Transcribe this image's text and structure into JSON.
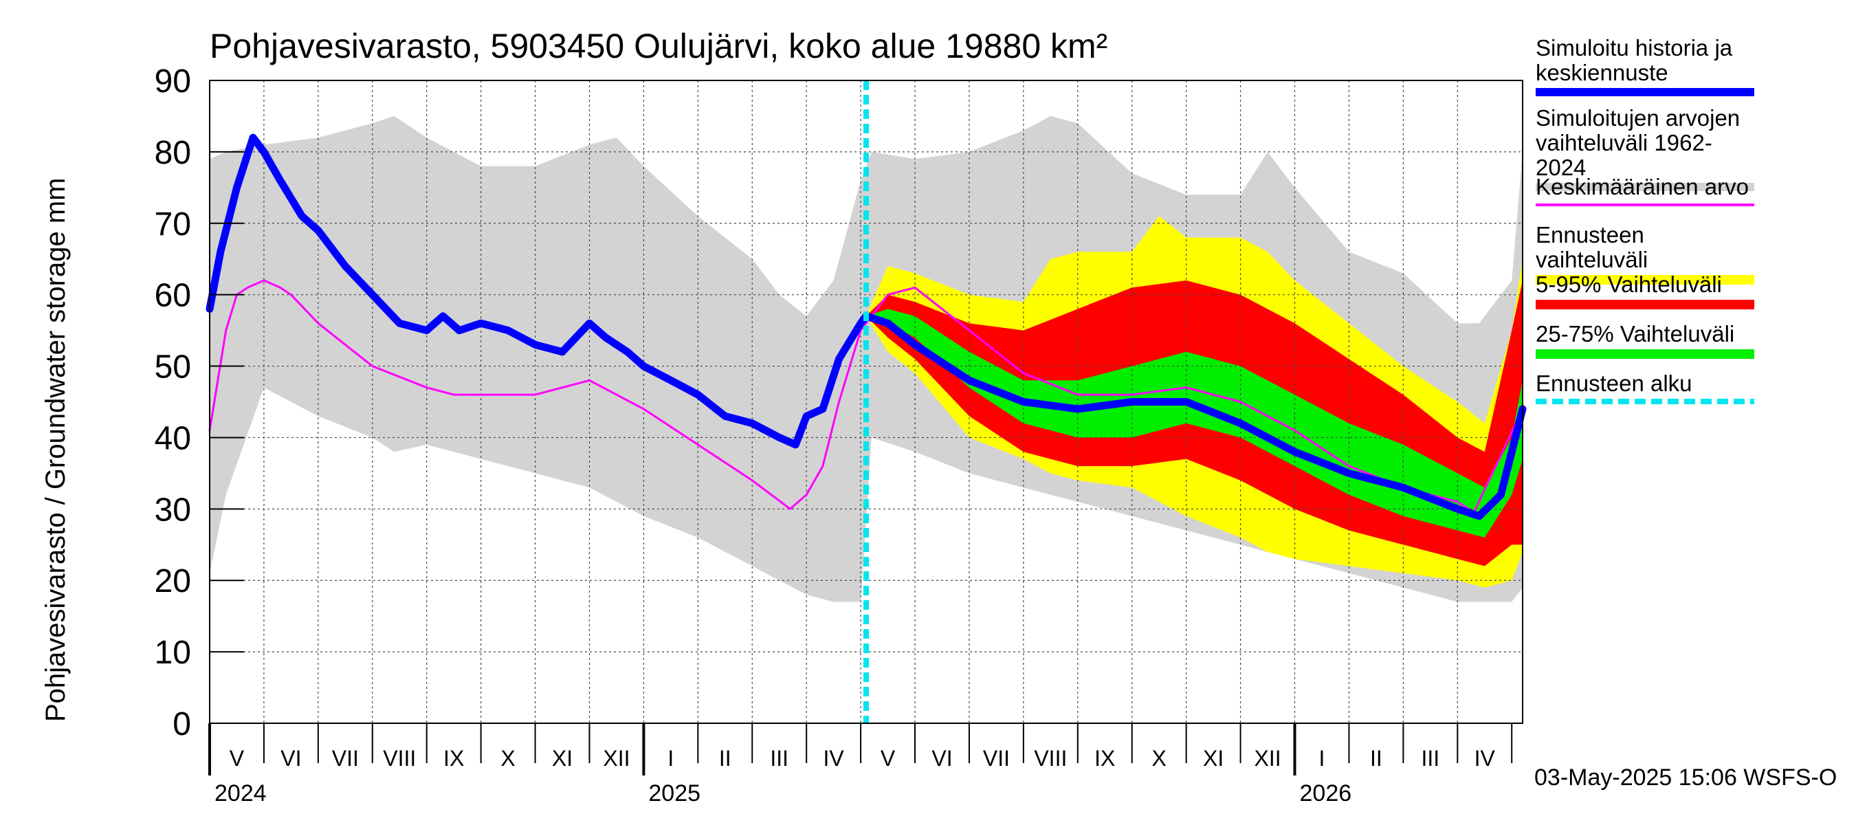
{
  "chart_data": {
    "type": "area",
    "title": "Pohjavesivarasto, 5903450 Oulujärvi, koko alue 19880 km²",
    "ylabel": "Pohjavesivarasto / Groundwater storage   mm",
    "ylim": [
      0,
      90
    ],
    "yticks": [
      0,
      10,
      20,
      30,
      40,
      50,
      60,
      70,
      80,
      90
    ],
    "xlim_months": [
      0,
      24.2
    ],
    "month_labels": [
      "V",
      "VI",
      "VII",
      "VIII",
      "IX",
      "X",
      "XI",
      "XII",
      "I",
      "II",
      "III",
      "IV",
      "V",
      "VI",
      "VII",
      "VIII",
      "IX",
      "X",
      "XI",
      "XII",
      "I",
      "II",
      "III",
      "IV"
    ],
    "year_labels": [
      {
        "label": "2024",
        "month": 0
      },
      {
        "label": "2025",
        "month": 8
      },
      {
        "label": "2026",
        "month": 20
      }
    ],
    "forecast_start_month": 12.1,
    "grid": true,
    "legend_position": "right",
    "series": [
      {
        "name": "Simuloitujen arvojen\nvaihteluväli 1962-2024",
        "kind": "band",
        "color": "#d3d3d3",
        "x": [
          0,
          0.3,
          1,
          2,
          3,
          3.4,
          4,
          5,
          6,
          7,
          7.5,
          8,
          9,
          10,
          10.5,
          11,
          11.5,
          12,
          12.2,
          13,
          14,
          15,
          15.5,
          16,
          17,
          18,
          19,
          19.5,
          20,
          21,
          22,
          23,
          23.4,
          24,
          24.2
        ],
        "upper": [
          79,
          80,
          81,
          82,
          84,
          85,
          82,
          78,
          78,
          81,
          82,
          78,
          71,
          65,
          60,
          57,
          62,
          76,
          80,
          79,
          80,
          83,
          85,
          84,
          77,
          74,
          74,
          80,
          75,
          66,
          63,
          56,
          56,
          62,
          80
        ],
        "lower": [
          21,
          32,
          47,
          43,
          40,
          38,
          39,
          37,
          35,
          33,
          31,
          29,
          26,
          22,
          20,
          18,
          17,
          17,
          40,
          38,
          35,
          33,
          32,
          31,
          29,
          27,
          25,
          24,
          23,
          21,
          19,
          17,
          17,
          17,
          19
        ]
      },
      {
        "name": "Ennusteen vaihteluväli",
        "kind": "band",
        "color": "#ffff00",
        "x": [
          12.1,
          12.5,
          13,
          14,
          15,
          15.5,
          16,
          17,
          17.5,
          18,
          19,
          19.5,
          20,
          21,
          22,
          23,
          23.5,
          24,
          24.2
        ],
        "upper": [
          57,
          64,
          63,
          60,
          59,
          65,
          66,
          66,
          71,
          68,
          68,
          66,
          62,
          56,
          50,
          45,
          42,
          55,
          65
        ],
        "lower": [
          57,
          52,
          49,
          40,
          37,
          35,
          34,
          33,
          31,
          29,
          26,
          24,
          23,
          22,
          21,
          20,
          19,
          20,
          24
        ]
      },
      {
        "name": "5-95% Vaihteluväli",
        "kind": "band",
        "color": "#ff0000",
        "x": [
          12.1,
          12.5,
          13,
          14,
          15,
          16,
          17,
          18,
          19,
          20,
          21,
          22,
          23,
          23.5,
          24,
          24.2
        ],
        "upper": [
          57,
          60,
          59,
          56,
          55,
          58,
          61,
          62,
          60,
          56,
          51,
          46,
          40,
          38,
          55,
          62
        ],
        "lower": [
          57,
          54,
          51,
          43,
          38,
          36,
          36,
          37,
          34,
          30,
          27,
          25,
          23,
          22,
          25,
          25
        ]
      },
      {
        "name": "25-75% Vaihteluväli",
        "kind": "band",
        "color": "#00ee00",
        "x": [
          12.1,
          12.5,
          13,
          14,
          15,
          16,
          17,
          18,
          19,
          20,
          21,
          22,
          23,
          23.5,
          24,
          24.2
        ],
        "upper": [
          57,
          58,
          57,
          52,
          48,
          48,
          50,
          52,
          50,
          46,
          42,
          39,
          35,
          33,
          40,
          48
        ],
        "lower": [
          57,
          56,
          54,
          47,
          42,
          40,
          40,
          42,
          40,
          36,
          32,
          29,
          27,
          26,
          32,
          37
        ]
      },
      {
        "name": "Keskimääräinen arvo",
        "kind": "line",
        "color": "#ff00ff",
        "width": 3,
        "x": [
          0,
          0.3,
          0.5,
          0.7,
          1,
          1.3,
          1.5,
          2,
          2.5,
          3,
          4,
          4.5,
          5,
          6,
          6.5,
          7,
          7.5,
          8,
          9,
          10,
          10.7,
          11,
          11.3,
          11.6,
          12,
          12.5,
          13,
          14,
          15,
          16,
          17,
          18,
          19,
          20,
          21,
          22,
          23,
          23.3,
          24.2
        ],
        "y": [
          41,
          55,
          60,
          61,
          62,
          61,
          60,
          56,
          53,
          50,
          47,
          46,
          46,
          46,
          47,
          48,
          46,
          44,
          39,
          34,
          30,
          32,
          36,
          45,
          55,
          60,
          61,
          55,
          49,
          46,
          46,
          47,
          45,
          41,
          36,
          33,
          31,
          29.5,
          44
        ]
      },
      {
        "name": "Simuloitu historia ja\nkeskiennuste",
        "kind": "line",
        "color": "#0000ff",
        "width": 11,
        "x": [
          0,
          0.2,
          0.5,
          0.8,
          1,
          1.3,
          1.7,
          2,
          2.5,
          3,
          3.5,
          4,
          4.3,
          4.6,
          5,
          5.5,
          6,
          6.5,
          7,
          7.3,
          7.7,
          8,
          8.5,
          9,
          9.5,
          10,
          10.5,
          10.8,
          11,
          11.3,
          11.6,
          12,
          12.1,
          12.5,
          13,
          14,
          15,
          16,
          17,
          18,
          19,
          20,
          21,
          22,
          23,
          23.4,
          23.8,
          24.2
        ],
        "y": [
          58,
          66,
          75,
          82,
          80,
          76,
          71,
          69,
          64,
          60,
          56,
          55,
          57,
          55,
          56,
          55,
          53,
          52,
          56,
          54,
          52,
          50,
          48,
          46,
          43,
          42,
          40,
          39,
          43,
          44,
          51,
          56,
          57,
          56,
          53,
          48,
          45,
          44,
          45,
          45,
          42,
          38,
          35,
          33,
          30,
          29,
          32,
          44
        ]
      },
      {
        "name": "Ennusteen alku",
        "kind": "vline",
        "color": "#00e5ee",
        "x": 12.1
      }
    ]
  },
  "timestamp": "03-May-2025 15:06 WSFS-O"
}
